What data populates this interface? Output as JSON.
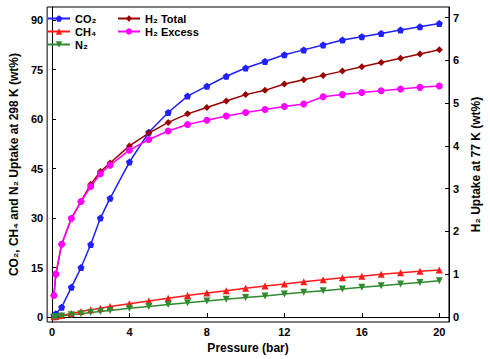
{
  "chart_data": {
    "type": "line",
    "xlabel": "Pressure (bar)",
    "ylabel": "CO₂, CH₄ and N₂ Uptake at 298 K (wt%)",
    "y2label": "H₂ Uptake at 77 K (wt%)",
    "xlim": [
      -0.25,
      20.5
    ],
    "xticks": [
      0,
      4,
      8,
      12,
      16,
      20
    ],
    "ylim": [
      -1.5,
      94
    ],
    "yticks": [
      0,
      15,
      30,
      45,
      60,
      75,
      90
    ],
    "y2lim": [
      -0.12,
      7.25
    ],
    "y2ticks": [
      0,
      1,
      2,
      3,
      4,
      5,
      6,
      7
    ],
    "grid": false,
    "legend": "upper left",
    "series": [
      {
        "name": "CO₂",
        "color": "#1f1fff",
        "marker": "pentagon",
        "line_style": "solid",
        "x": [
          0.1,
          0.2,
          0.5,
          1,
          1.5,
          2,
          2.5,
          3,
          4,
          5,
          6,
          7,
          8,
          9,
          10,
          11,
          12,
          13,
          14,
          15,
          16,
          17,
          18,
          19,
          20
        ],
        "values": [
          0.5,
          1,
          3,
          9,
          15,
          22,
          30,
          36,
          47,
          56,
          62,
          67,
          70,
          73,
          75.5,
          77.5,
          79.5,
          81,
          82.5,
          84,
          85,
          86,
          87,
          88,
          89
        ]
      },
      {
        "name": "CH₄",
        "color": "#ff1a1a",
        "marker": "triangle",
        "line_style": "solid",
        "x": [
          0.1,
          0.2,
          0.5,
          1,
          1.5,
          2,
          2.5,
          3,
          4,
          5,
          6,
          7,
          8,
          9,
          10,
          11,
          12,
          13,
          14,
          15,
          16,
          17,
          18,
          19,
          20
        ],
        "values": [
          0.1,
          0.2,
          0.5,
          1.1,
          1.7,
          2.2,
          2.7,
          3.2,
          4,
          4.9,
          5.7,
          6.5,
          7.3,
          8,
          8.7,
          9.4,
          10,
          10.7,
          11.3,
          11.9,
          12.4,
          13,
          13.4,
          13.9,
          14.3
        ]
      },
      {
        "name": "N₂",
        "color": "#2e8b2e",
        "marker": "triangle-down",
        "line_style": "solid",
        "x": [
          0.1,
          0.2,
          0.5,
          1,
          1.5,
          2,
          2.5,
          3,
          4,
          5,
          6,
          7,
          8,
          9,
          10,
          11,
          12,
          13,
          14,
          15,
          16,
          17,
          18,
          19,
          20
        ],
        "values": [
          0.05,
          0.1,
          0.3,
          0.7,
          1,
          1.4,
          1.7,
          2,
          2.7,
          3.2,
          3.8,
          4.3,
          4.9,
          5.4,
          5.9,
          6.4,
          7,
          7.5,
          8,
          8.5,
          9,
          9.5,
          10,
          10.5,
          11
        ]
      },
      {
        "name": "H₂ Total",
        "color": "#990000",
        "marker": "diamond",
        "line_style": "solid",
        "axis": "y2",
        "x": [
          0.1,
          0.2,
          0.5,
          1,
          1.5,
          2,
          2.5,
          3,
          4,
          5,
          6,
          7,
          8,
          9,
          10,
          11,
          12,
          13,
          14,
          15,
          16,
          17,
          18,
          19,
          20
        ],
        "values": [
          0.5,
          1,
          1.7,
          2.3,
          2.7,
          3.1,
          3.4,
          3.6,
          4,
          4.3,
          4.55,
          4.75,
          4.9,
          5.05,
          5.2,
          5.3,
          5.45,
          5.55,
          5.65,
          5.75,
          5.85,
          5.95,
          6.05,
          6.15,
          6.25
        ]
      },
      {
        "name": "H₂ Excess",
        "color": "#ff00ff",
        "marker": "circle",
        "line_style": "solid",
        "axis": "y2",
        "x": [
          0.1,
          0.2,
          0.5,
          1,
          1.5,
          2,
          2.5,
          3,
          4,
          5,
          6,
          7,
          8,
          9,
          10,
          11,
          12,
          13,
          14,
          15,
          16,
          17,
          18,
          19,
          20
        ],
        "values": [
          0.5,
          1,
          1.7,
          2.3,
          2.7,
          3.05,
          3.35,
          3.55,
          3.9,
          4.15,
          4.35,
          4.5,
          4.6,
          4.7,
          4.78,
          4.85,
          4.92,
          4.98,
          5.15,
          5.2,
          5.25,
          5.29,
          5.33,
          5.37,
          5.4
        ]
      }
    ]
  }
}
